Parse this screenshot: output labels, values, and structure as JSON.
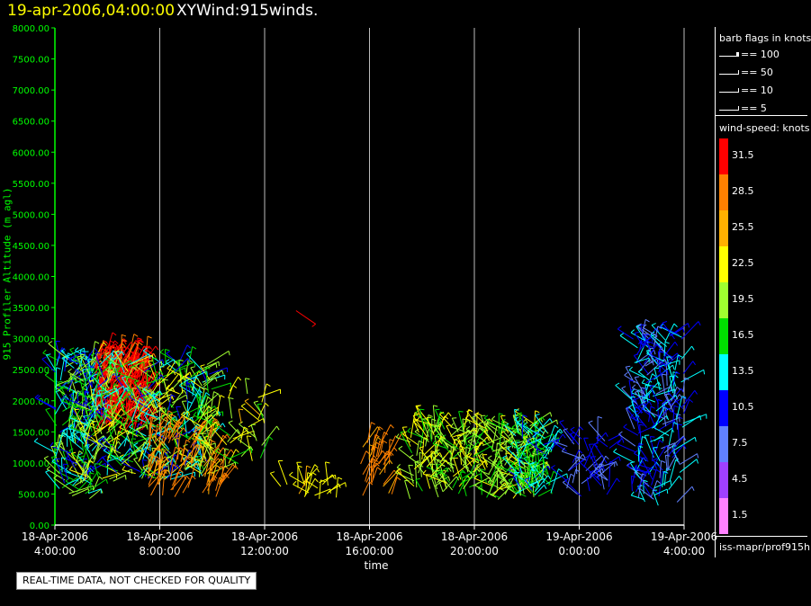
{
  "header": {
    "timestamp": "19-apr-2006,04:00:00",
    "product": "XYWind:915winds."
  },
  "footer": {
    "qc_note": "REAL-TIME DATA, NOT CHECKED FOR QUALITY",
    "source": "iss-mapr/prof915h"
  },
  "legend": {
    "barb_title": "barb flags in knots",
    "barbs": [
      "== 100",
      "== 50",
      "== 10",
      "== 5"
    ],
    "speed_title": "wind-speed: knots",
    "speed_bins": [
      {
        "label": "31.5",
        "color": "#ff0000"
      },
      {
        "label": "28.5",
        "color": "#ff8000"
      },
      {
        "label": "25.5",
        "color": "#ffb000"
      },
      {
        "label": "22.5",
        "color": "#ffff00"
      },
      {
        "label": "19.5",
        "color": "#a0ff30"
      },
      {
        "label": "16.5",
        "color": "#00e000"
      },
      {
        "label": "13.5",
        "color": "#00ffff"
      },
      {
        "label": "10.5",
        "color": "#0000ff"
      },
      {
        "label": "7.5",
        "color": "#6080ff"
      },
      {
        "label": "4.5",
        "color": "#a040ff"
      },
      {
        "label": "1.5",
        "color": "#ff80ff"
      }
    ]
  },
  "chart_data": {
    "type": "scatter",
    "ylabel": "915 Profiler Altitude (m agl)",
    "xlabel": "time",
    "ylim": [
      0,
      8000
    ],
    "yticks": [
      "0.00",
      "500.00",
      "1000.00",
      "1500.00",
      "2000.00",
      "2500.00",
      "3000.00",
      "3500.00",
      "4000.00",
      "4500.00",
      "5000.00",
      "5500.00",
      "6000.00",
      "6500.00",
      "7000.00",
      "7500.00",
      "8000.00"
    ],
    "xlim_hours": [
      0,
      24
    ],
    "xticks": [
      {
        "date": "18-Apr-2006",
        "time": "4:00:00"
      },
      {
        "date": "18-Apr-2006",
        "time": "8:00:00"
      },
      {
        "date": "18-Apr-2006",
        "time": "12:00:00"
      },
      {
        "date": "18-Apr-2006",
        "time": "16:00:00"
      },
      {
        "date": "18-Apr-2006",
        "time": "20:00:00"
      },
      {
        "date": "19-Apr-2006",
        "time": "0:00:00"
      },
      {
        "date": "19-Apr-2006",
        "time": "4:00:00"
      }
    ],
    "grid": true,
    "clusters": [
      {
        "t0": 0.0,
        "t1": 1.5,
        "a0": 400,
        "a1": 2700,
        "speed": 15,
        "spread": 12,
        "count": 160
      },
      {
        "t0": 1.5,
        "t1": 3.5,
        "a0": 1500,
        "a1": 2700,
        "speed": 31,
        "spread": 3,
        "count": 260
      },
      {
        "t0": 1.0,
        "t1": 6.0,
        "a0": 700,
        "a1": 2600,
        "speed": 17,
        "spread": 12,
        "count": 360
      },
      {
        "t0": 3.5,
        "t1": 6.5,
        "a0": 450,
        "a1": 1500,
        "speed": 28,
        "spread": 4,
        "count": 90
      },
      {
        "t0": 5.5,
        "t1": 8.0,
        "a0": 900,
        "a1": 2200,
        "speed": 21,
        "spread": 8,
        "count": 45
      },
      {
        "t0": 8.5,
        "t1": 10.8,
        "a0": 400,
        "a1": 700,
        "speed": 24,
        "spread": 6,
        "count": 22
      },
      {
        "t0": 11.5,
        "t1": 12.9,
        "a0": 450,
        "a1": 1400,
        "speed": 28,
        "spread": 3,
        "count": 34
      },
      {
        "t0": 13.5,
        "t1": 18.5,
        "a0": 400,
        "a1": 1600,
        "speed": 20,
        "spread": 6,
        "count": 260
      },
      {
        "t0": 17.5,
        "t1": 19.0,
        "a0": 450,
        "a1": 1500,
        "speed": 14,
        "spread": 6,
        "count": 70
      },
      {
        "t0": 19.5,
        "t1": 21.2,
        "a0": 450,
        "a1": 1400,
        "speed": 9,
        "spread": 5,
        "count": 45
      },
      {
        "t0": 22.0,
        "t1": 24.0,
        "a0": 300,
        "a1": 3100,
        "speed": 11,
        "spread": 7,
        "count": 200
      }
    ],
    "outlier": {
      "t": 9.2,
      "a": 3450,
      "speed": 31
    }
  }
}
